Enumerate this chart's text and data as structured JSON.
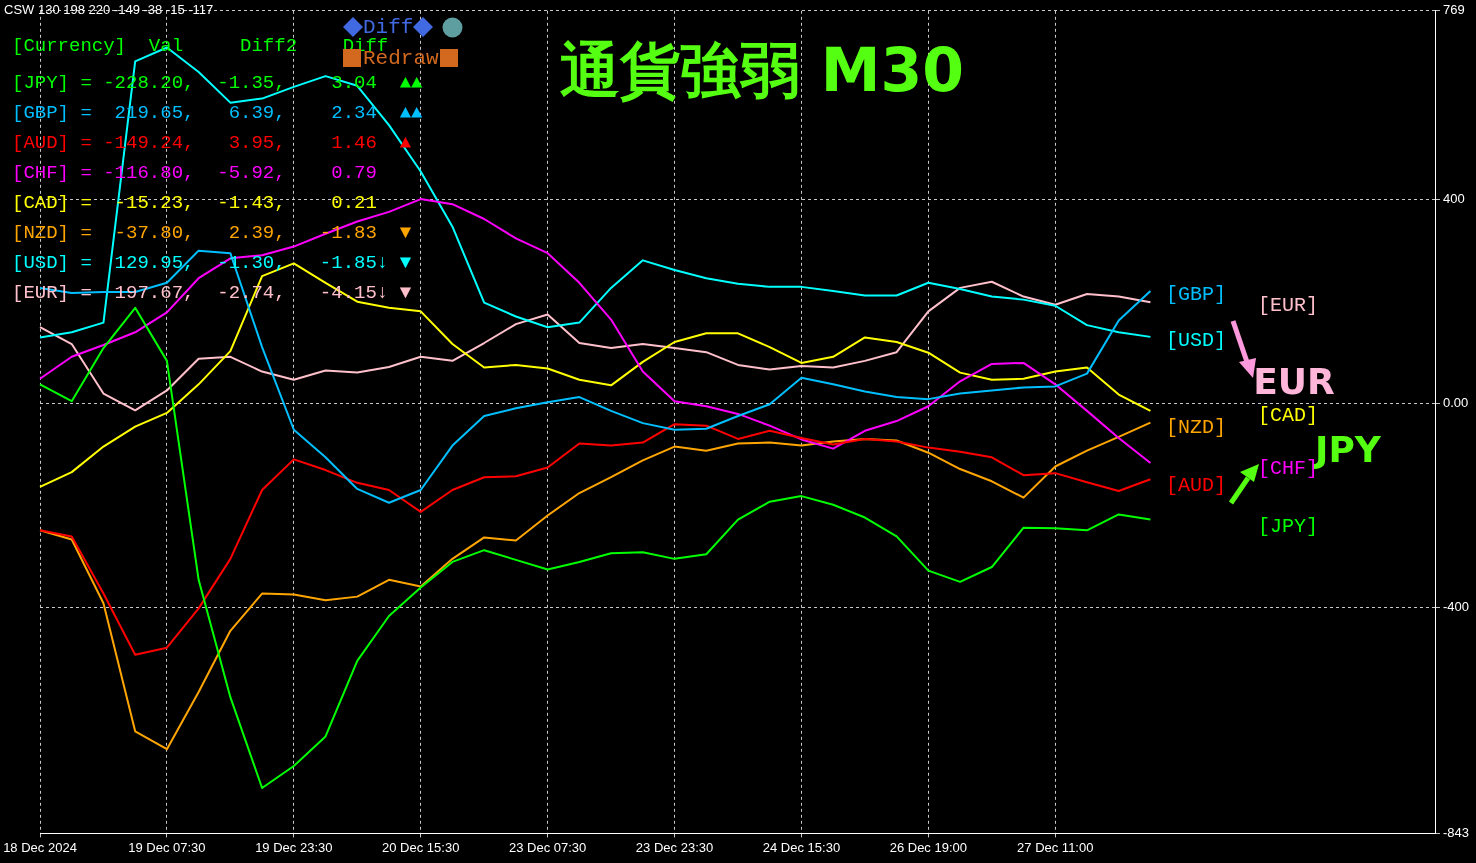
{
  "chart_data": {
    "type": "line",
    "title": "通貨強弱 M30",
    "categories": [
      "18 Dec 2024",
      null,
      null,
      null,
      "19 Dec 07:30",
      null,
      null,
      null,
      "19 Dec 23:30",
      null,
      null,
      null,
      "20 Dec 15:30",
      null,
      null,
      null,
      "23 Dec 07:30",
      null,
      null,
      null,
      "23 Dec 23:30",
      null,
      null,
      null,
      "24 Dec 15:30",
      null,
      null,
      null,
      "26 Dec 19:00",
      null,
      null,
      null,
      "27 Dec 11:00",
      null,
      null,
      null,
      null,
      null,
      null,
      null,
      null,
      null,
      null,
      null,
      null
    ],
    "series": [
      {
        "name": "[JPY]",
        "color": "#00ff00",
        "values": [
          37,
          4,
          108,
          187,
          83,
          -346,
          -576,
          -754,
          -711,
          -653,
          -505,
          -417,
          -361,
          -311,
          -288,
          -307,
          -326,
          -311,
          -294,
          -292,
          -305,
          -296,
          -228,
          -193,
          -182,
          -199,
          -224,
          -261,
          -328,
          -350,
          -321,
          -244,
          -245,
          -249,
          -218,
          -228,
          null,
          null,
          null,
          null,
          null,
          null,
          null,
          null,
          null
        ]
      },
      {
        "name": "[GBP]",
        "color": "#00bfff",
        "values": [
          226,
          216,
          218,
          218,
          236,
          299,
          294,
          110,
          -52,
          -106,
          -168,
          -195,
          -170,
          -83,
          -25,
          -10,
          2,
          12,
          -15,
          -39,
          -52,
          -50,
          -25,
          -2,
          50,
          37,
          23,
          12,
          8,
          19,
          25,
          31,
          33,
          58,
          162,
          220,
          null,
          null,
          null,
          null,
          null,
          null,
          null,
          null,
          null
        ]
      },
      {
        "name": "[AUD]",
        "color": "#ff0000",
        "values": [
          -249,
          -261,
          -373,
          -493,
          -479,
          -402,
          -305,
          -170,
          -110,
          -131,
          -156,
          -170,
          -213,
          -170,
          -145,
          -143,
          -126,
          -79,
          -83,
          -77,
          -41,
          -44,
          -70,
          -54,
          -68,
          -81,
          -70,
          -75,
          -87,
          -95,
          -106,
          -141,
          -137,
          -155,
          -172,
          -149,
          null,
          null,
          null,
          null,
          null,
          null,
          null,
          null,
          null
        ]
      },
      {
        "name": "[CHF]",
        "color": "#ff00ff",
        "values": [
          48,
          91,
          114,
          139,
          178,
          245,
          284,
          290,
          307,
          332,
          356,
          375,
          400,
          390,
          361,
          323,
          294,
          236,
          164,
          62,
          4,
          -6,
          -21,
          -44,
          -71,
          -89,
          -54,
          -35,
          -6,
          43,
          77,
          79,
          37,
          -15,
          -68,
          -117,
          null,
          null,
          null,
          null,
          null,
          null,
          null,
          null,
          null
        ]
      },
      {
        "name": "[CAD]",
        "color": "#ffff00",
        "values": [
          -164,
          -135,
          -85,
          -46,
          -19,
          37,
          102,
          249,
          274,
          236,
          199,
          187,
          180,
          116,
          70,
          75,
          68,
          46,
          35,
          81,
          120,
          137,
          137,
          110,
          79,
          91,
          129,
          120,
          99,
          60,
          46,
          48,
          62,
          70,
          17,
          -15,
          null,
          null,
          null,
          null,
          null,
          null,
          null,
          null,
          null
        ]
      },
      {
        "name": "[NZD]",
        "color": "#ffa500",
        "values": [
          -249,
          -267,
          -392,
          -643,
          -678,
          -566,
          -446,
          -373,
          -375,
          -386,
          -379,
          -346,
          -359,
          -305,
          -263,
          -269,
          -220,
          -176,
          -145,
          -112,
          -85,
          -93,
          -79,
          -77,
          -83,
          -75,
          -70,
          -73,
          -97,
          -129,
          -153,
          -185,
          -124,
          -93,
          -66,
          -38,
          null,
          null,
          null,
          null,
          null,
          null,
          null,
          null,
          null
        ]
      },
      {
        "name": "[USD]",
        "color": "#00ffff",
        "values": [
          129,
          139,
          158,
          670,
          697,
          649,
          589,
          597,
          620,
          641,
          622,
          545,
          454,
          346,
          197,
          170,
          149,
          158,
          226,
          280,
          261,
          245,
          234,
          228,
          228,
          220,
          211,
          211,
          236,
          224,
          209,
          203,
          191,
          153,
          139,
          130,
          null,
          null,
          null,
          null,
          null,
          null,
          null,
          null,
          null
        ]
      },
      {
        "name": "[EUR]",
        "color": "#ffc0cb",
        "values": [
          149,
          116,
          19,
          -14,
          25,
          87,
          91,
          62,
          46,
          64,
          60,
          71,
          91,
          83,
          118,
          155,
          174,
          118,
          108,
          116,
          108,
          100,
          75,
          66,
          73,
          70,
          83,
          100,
          180,
          226,
          238,
          209,
          193,
          214,
          209,
          198,
          null,
          null,
          null,
          null,
          null,
          null,
          null,
          null,
          null
        ]
      }
    ],
    "ylim": [
      -843,
      769
    ],
    "yticks": [
      -843,
      -400,
      {
        "value": 0,
        "label": "0.00"
      },
      400,
      769
    ],
    "grid": true,
    "legend": false,
    "marker": "none",
    "line_style": "solid",
    "annotations": [
      "CSW 130 198 220 -149 -38 -15 -117",
      "[Currency]  Val     Diff2    Diff",
      "[JPY] = -228.20,  -1.35,    3.04  ▲▲",
      "[GBP] =  219.65,   6.39,    2.34  ▲▲",
      "[AUD] = -149.24,   3.95,    1.46  ▲",
      "[CHF] = -116.80,  -5.92,    0.79",
      "[CAD] =  -15.23,  -1.43,    0.21",
      "[NZD] =  -37.80,   2.39,   -1.83  ▼",
      "[USD] =  129.95,  -1.30,   -1.85↓ ▼",
      "[EUR] =  197.67,  -2.74,   -4.15↓ ▼",
      "Diff",
      "Redraw",
      "EUR",
      "JPY"
    ]
  }
}
